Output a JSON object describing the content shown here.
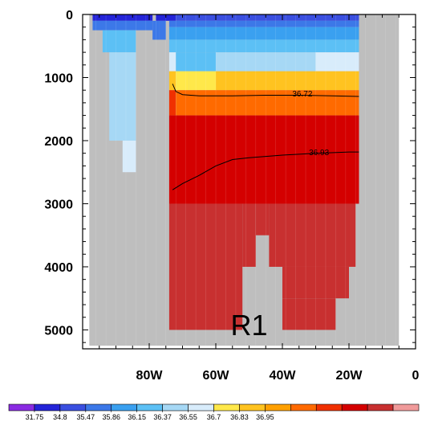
{
  "chart_data": {
    "type": "heatmap",
    "title": "",
    "xlabel": "",
    "ylabel": "",
    "xlim": [
      100,
      0
    ],
    "ylim": [
      5300,
      0
    ],
    "x_ticks": [
      {
        "value": 80,
        "label": "80W"
      },
      {
        "value": 60,
        "label": "60W"
      },
      {
        "value": 40,
        "label": "40W"
      },
      {
        "value": 20,
        "label": "20W"
      },
      {
        "value": 0,
        "label": "0"
      }
    ],
    "y_ticks": [
      {
        "value": 0,
        "label": "0"
      },
      {
        "value": 1000,
        "label": "1000"
      },
      {
        "value": 2000,
        "label": "2000"
      },
      {
        "value": 3000,
        "label": "3000"
      },
      {
        "value": 4000,
        "label": "4000"
      },
      {
        "value": 5000,
        "label": "5000"
      }
    ],
    "background_color": "#bebebe",
    "colorbar": {
      "labels": [
        "31.75",
        "34.8",
        "35.47",
        "35.86",
        "36.15",
        "36.37",
        "36.55",
        "36.7",
        "36.83",
        "36.95"
      ],
      "colors": [
        "#8a2be2",
        "#2424d8",
        "#3a4fe0",
        "#3c78e8",
        "#3aa0f0",
        "#5cc0f5",
        "#a6d8f5",
        "#d8ecfb",
        "#ffe84a",
        "#ffc320",
        "#ffa000",
        "#ff6a00",
        "#f03000",
        "#d40000",
        "#c83030",
        "#f09a9a"
      ]
    },
    "cells": [
      {
        "lon": [
          97,
          79
        ],
        "depth": [
          0,
          100
        ],
        "color": "#2424d8"
      },
      {
        "lon": [
          78,
          72
        ],
        "depth": [
          0,
          100
        ],
        "color": "#2424d8"
      },
      {
        "lon": [
          72,
          17
        ],
        "depth": [
          0,
          100
        ],
        "color": "#3a4fe0"
      },
      {
        "lon": [
          97,
          79
        ],
        "depth": [
          100,
          250
        ],
        "color": "#3c78e8"
      },
      {
        "lon": [
          79,
          77
        ],
        "depth": [
          100,
          400
        ],
        "color": "#3c78e8"
      },
      {
        "lon": [
          77,
          75
        ],
        "depth": [
          100,
          400
        ],
        "color": "#3c78e8"
      },
      {
        "lon": [
          74,
          17
        ],
        "depth": [
          100,
          200
        ],
        "color": "#3c78e8"
      },
      {
        "lon": [
          74,
          17
        ],
        "depth": [
          200,
          400
        ],
        "color": "#3aa0f0"
      },
      {
        "lon": [
          94,
          84
        ],
        "depth": [
          250,
          600
        ],
        "color": "#5cc0f5"
      },
      {
        "lon": [
          74,
          17
        ],
        "depth": [
          400,
          600
        ],
        "color": "#5cc0f5"
      },
      {
        "lon": [
          92,
          84
        ],
        "depth": [
          600,
          2000
        ],
        "color": "#a6d8f5"
      },
      {
        "lon": [
          88,
          84
        ],
        "depth": [
          2000,
          2500
        ],
        "color": "#d8ecfb"
      },
      {
        "lon": [
          74,
          72
        ],
        "depth": [
          600,
          900
        ],
        "color": "#d8ecfb"
      },
      {
        "lon": [
          72,
          60
        ],
        "depth": [
          600,
          900
        ],
        "color": "#5cc0f5"
      },
      {
        "lon": [
          60,
          30
        ],
        "depth": [
          600,
          900
        ],
        "color": "#a6d8f5"
      },
      {
        "lon": [
          30,
          17
        ],
        "depth": [
          600,
          900
        ],
        "color": "#d8ecfb"
      },
      {
        "lon": [
          74,
          72
        ],
        "depth": [
          900,
          1200
        ],
        "color": "#ffc320"
      },
      {
        "lon": [
          72,
          68
        ],
        "depth": [
          900,
          1200
        ],
        "color": "#ffe84a"
      },
      {
        "lon": [
          68,
          60
        ],
        "depth": [
          900,
          1200
        ],
        "color": "#ffe84a"
      },
      {
        "lon": [
          60,
          17
        ],
        "depth": [
          900,
          1200
        ],
        "color": "#ffc320"
      },
      {
        "lon": [
          74,
          72
        ],
        "depth": [
          1200,
          1600
        ],
        "color": "#f03000"
      },
      {
        "lon": [
          72,
          17
        ],
        "depth": [
          1200,
          1600
        ],
        "color": "#ff6a00"
      },
      {
        "lon": [
          74,
          17
        ],
        "depth": [
          1600,
          3000
        ],
        "color": "#d40000"
      },
      {
        "lon": [
          74,
          52
        ],
        "depth": [
          3000,
          5000
        ],
        "color": "#c83030"
      },
      {
        "lon": [
          52,
          48
        ],
        "depth": [
          3000,
          4000
        ],
        "color": "#c83030"
      },
      {
        "lon": [
          48,
          44
        ],
        "depth": [
          3000,
          3500
        ],
        "color": "#c83030"
      },
      {
        "lon": [
          44,
          40
        ],
        "depth": [
          3000,
          4000
        ],
        "color": "#c83030"
      },
      {
        "lon": [
          40,
          18
        ],
        "depth": [
          3000,
          4000
        ],
        "color": "#c83030"
      },
      {
        "lon": [
          40,
          20
        ],
        "depth": [
          4000,
          4500
        ],
        "color": "#c83030"
      },
      {
        "lon": [
          40,
          24
        ],
        "depth": [
          4500,
          5000
        ],
        "color": "#c83030"
      }
    ],
    "contours": [
      {
        "label": "36.72",
        "label_at": {
          "lon": 34,
          "depth": 1250
        },
        "points": [
          [
            73,
            1100
          ],
          [
            72,
            1220
          ],
          [
            70,
            1270
          ],
          [
            65,
            1290
          ],
          [
            55,
            1290
          ],
          [
            45,
            1280
          ],
          [
            35,
            1280
          ],
          [
            25,
            1290
          ],
          [
            17,
            1300
          ]
        ]
      },
      {
        "label": "36.93",
        "label_at": {
          "lon": 29,
          "depth": 2180
        },
        "points": [
          [
            73,
            2780
          ],
          [
            70,
            2680
          ],
          [
            65,
            2550
          ],
          [
            60,
            2400
          ],
          [
            55,
            2300
          ],
          [
            50,
            2270
          ],
          [
            45,
            2250
          ],
          [
            40,
            2230
          ],
          [
            30,
            2200
          ],
          [
            20,
            2180
          ],
          [
            17,
            2180
          ]
        ]
      }
    ],
    "annotations": [
      {
        "text": "R1",
        "lon": 50,
        "depth": 4930
      }
    ]
  }
}
